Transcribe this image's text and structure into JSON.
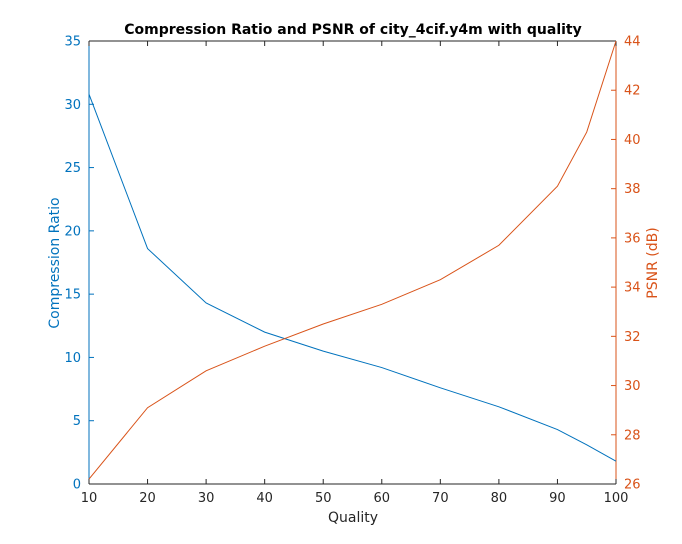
{
  "chart_data": {
    "type": "line",
    "title": "Compression Ratio and PSNR of city_4cif.y4m with quality",
    "xlabel": "Quality",
    "xlim": [
      10,
      100
    ],
    "xticks": [
      10,
      20,
      30,
      40,
      50,
      60,
      70,
      80,
      90,
      100
    ],
    "grid": false,
    "colors": {
      "left": "#0072BD",
      "right": "#D95319",
      "axis": "#262626"
    },
    "left_axis": {
      "label": "Compression Ratio",
      "ylim": [
        0,
        35
      ],
      "ticks": [
        0,
        5,
        10,
        15,
        20,
        25,
        30,
        35
      ]
    },
    "right_axis": {
      "label": "PSNR (dB)",
      "ylim": [
        26,
        44
      ],
      "ticks": [
        26,
        28,
        30,
        32,
        34,
        36,
        38,
        40,
        42,
        44
      ]
    },
    "series": [
      {
        "axis": "left",
        "x": [
          10,
          20,
          30,
          40,
          50,
          60,
          70,
          80,
          90,
          95,
          100
        ],
        "values": [
          30.8,
          18.6,
          14.3,
          12.0,
          10.5,
          9.2,
          7.6,
          6.1,
          4.3,
          3.1,
          1.8
        ]
      },
      {
        "axis": "right",
        "x": [
          10,
          20,
          30,
          40,
          50,
          60,
          70,
          80,
          90,
          95,
          100
        ],
        "values": [
          26.2,
          29.1,
          30.6,
          31.6,
          32.5,
          33.3,
          34.3,
          35.7,
          38.1,
          40.3,
          44.0
        ]
      }
    ]
  }
}
